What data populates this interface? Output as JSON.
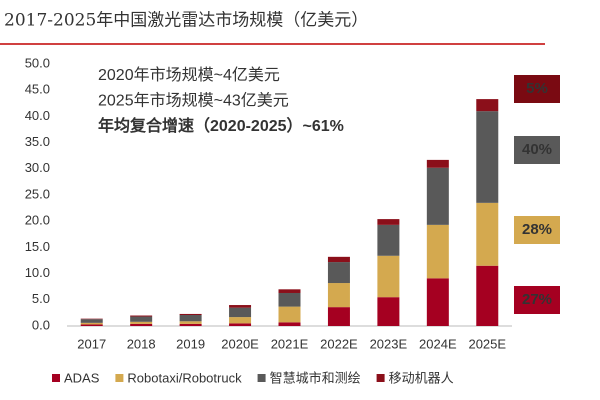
{
  "chart_data": {
    "type": "stacked_bar",
    "title": "2017-2025年中国激光雷达市场规模（亿美元）",
    "categories": [
      "2017",
      "2018",
      "2019",
      "2020E",
      "2021E",
      "2022E",
      "2023E",
      "2024E",
      "2025E"
    ],
    "series": [
      {
        "name": "ADAS",
        "color": "#a50021",
        "values": [
          0.3,
          0.4,
          0.4,
          0.5,
          0.7,
          3.6,
          5.5,
          9.1,
          11.5
        ]
      },
      {
        "name": "Robotaxi/Robotruck",
        "color": "#d4a94f",
        "values": [
          0.3,
          0.4,
          0.5,
          1.2,
          3.0,
          4.6,
          7.9,
          10.2,
          12.0
        ]
      },
      {
        "name": "智慧城市和测绘",
        "color": "#595959",
        "values": [
          0.7,
          1.0,
          1.2,
          1.8,
          2.6,
          4.0,
          5.9,
          10.9,
          17.5
        ]
      },
      {
        "name": "移动机器人",
        "color": "#8b0f1a",
        "values": [
          0.1,
          0.2,
          0.2,
          0.5,
          0.7,
          1.0,
          1.1,
          1.5,
          2.3
        ]
      }
    ],
    "ylim": [
      0,
      50
    ],
    "yticks": [
      {
        "value": 0,
        "label": "0.0"
      },
      {
        "value": 5,
        "label": "5.0"
      },
      {
        "value": 10,
        "label": "10.0"
      },
      {
        "value": 15,
        "label": "15.0"
      },
      {
        "value": 20,
        "label": "20.0"
      },
      {
        "value": 25,
        "label": "25.0"
      },
      {
        "value": 30,
        "label": "30.0"
      },
      {
        "value": 35,
        "label": "35.0"
      },
      {
        "value": 40,
        "label": "40.0"
      },
      {
        "value": 45,
        "label": "45.0"
      },
      {
        "value": 50,
        "label": "50.0"
      }
    ],
    "grid": false,
    "legend": "bottom",
    "annotations": [
      {
        "text": "2020年市场规模~4亿美元",
        "color": "#111111"
      },
      {
        "text": "2025年市场规模~43亿美元",
        "color": "#111111"
      },
      {
        "text": "年均复合增速（2020-2025）~61%",
        "color": "#c00000"
      }
    ],
    "side_labels": [
      {
        "text": "5%",
        "color": "#7a0a12"
      },
      {
        "text": "40%",
        "color": "#595959"
      },
      {
        "text": "28%",
        "color": "#d4a94f"
      },
      {
        "text": "27%",
        "color": "#a50021"
      }
    ]
  }
}
